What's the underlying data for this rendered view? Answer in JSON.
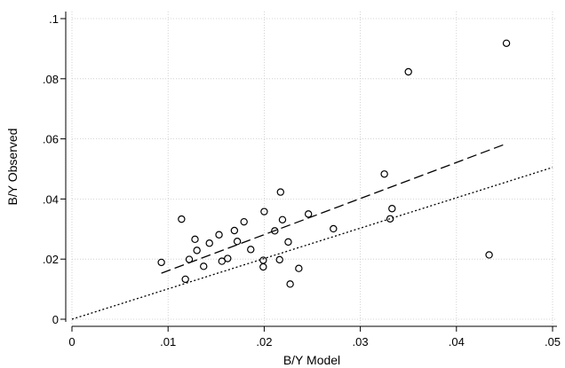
{
  "chart_data": {
    "type": "scatter",
    "title": "",
    "xlabel": "B/Y Model",
    "ylabel": "B/Y Observed",
    "xlim": [
      0,
      0.05
    ],
    "ylim": [
      0,
      0.1
    ],
    "grid": true,
    "x_ticks": [
      {
        "value": 0,
        "label": "0"
      },
      {
        "value": 0.01,
        "label": ".01"
      },
      {
        "value": 0.02,
        "label": ".02"
      },
      {
        "value": 0.03,
        "label": ".03"
      },
      {
        "value": 0.04,
        "label": ".04"
      },
      {
        "value": 0.05,
        "label": ".05"
      }
    ],
    "y_ticks": [
      {
        "value": 0,
        "label": "0"
      },
      {
        "value": 0.02,
        "label": ".02"
      },
      {
        "value": 0.04,
        "label": ".04"
      },
      {
        "value": 0.06,
        "label": ".06"
      },
      {
        "value": 0.08,
        "label": ".08"
      },
      {
        "value": 0.1,
        "label": ".1"
      }
    ],
    "points": [
      {
        "x": 0.0093,
        "y": 0.0189
      },
      {
        "x": 0.0114,
        "y": 0.0333
      },
      {
        "x": 0.0118,
        "y": 0.0133
      },
      {
        "x": 0.0122,
        "y": 0.0199
      },
      {
        "x": 0.0128,
        "y": 0.0266
      },
      {
        "x": 0.013,
        "y": 0.0229
      },
      {
        "x": 0.0137,
        "y": 0.0176
      },
      {
        "x": 0.0143,
        "y": 0.0253
      },
      {
        "x": 0.0153,
        "y": 0.0281
      },
      {
        "x": 0.0156,
        "y": 0.0193
      },
      {
        "x": 0.0162,
        "y": 0.0202
      },
      {
        "x": 0.0169,
        "y": 0.0295
      },
      {
        "x": 0.0172,
        "y": 0.0259
      },
      {
        "x": 0.0179,
        "y": 0.0324
      },
      {
        "x": 0.0186,
        "y": 0.0232
      },
      {
        "x": 0.0199,
        "y": 0.0196
      },
      {
        "x": 0.0199,
        "y": 0.0174
      },
      {
        "x": 0.02,
        "y": 0.0358
      },
      {
        "x": 0.0211,
        "y": 0.0294
      },
      {
        "x": 0.0216,
        "y": 0.0198
      },
      {
        "x": 0.0217,
        "y": 0.0423
      },
      {
        "x": 0.0219,
        "y": 0.0331
      },
      {
        "x": 0.0225,
        "y": 0.0257
      },
      {
        "x": 0.0227,
        "y": 0.0117
      },
      {
        "x": 0.0236,
        "y": 0.0169
      },
      {
        "x": 0.0246,
        "y": 0.035
      },
      {
        "x": 0.0272,
        "y": 0.0301
      },
      {
        "x": 0.0325,
        "y": 0.0483
      },
      {
        "x": 0.0331,
        "y": 0.0334
      },
      {
        "x": 0.0333,
        "y": 0.0368
      },
      {
        "x": 0.035,
        "y": 0.0823
      },
      {
        "x": 0.0434,
        "y": 0.0214
      },
      {
        "x": 0.0452,
        "y": 0.0918
      }
    ],
    "lines": [
      {
        "style": "dashed",
        "x": [
          0.0093,
          0.0452
        ],
        "y": [
          0.0153,
          0.0584
        ]
      },
      {
        "style": "dotted",
        "x": [
          0,
          0.05
        ],
        "y": [
          0,
          0.0505
        ]
      }
    ]
  }
}
